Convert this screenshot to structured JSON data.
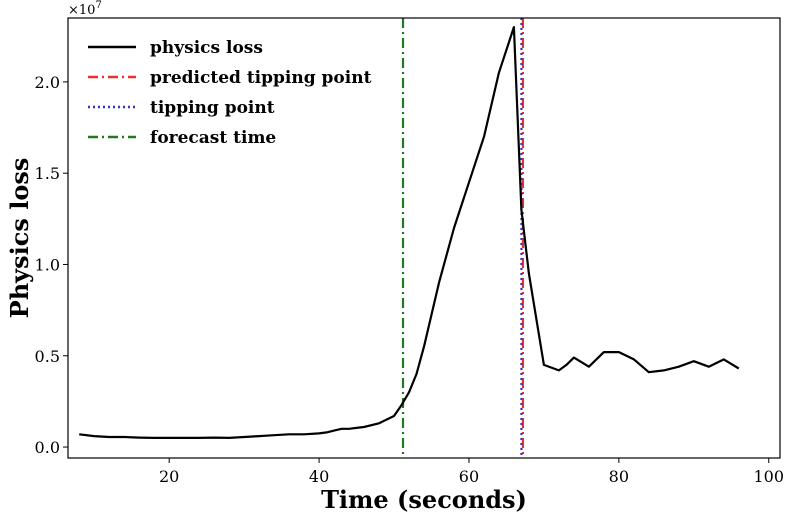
{
  "chart_data": {
    "type": "line",
    "xlabel": "Time (seconds)",
    "ylabel": "Physics loss",
    "y_offset_label": "×10",
    "y_offset_exponent": "7",
    "xlim": [
      6.5,
      101.5
    ],
    "ylim": [
      -0.6,
      23.5
    ],
    "y_units_multiplier": 10000000,
    "x_ticks": [
      20,
      40,
      60,
      80,
      100
    ],
    "x_tick_labels": [
      "20",
      "40",
      "60",
      "80",
      "100"
    ],
    "y_ticks": [
      0,
      5,
      10,
      15,
      20
    ],
    "y_tick_labels": [
      "0.0",
      "0.5",
      "1.0",
      "1.5",
      "2.0"
    ],
    "grid": false,
    "legend_position": "top-left",
    "series": [
      {
        "name": "physics loss",
        "color": "#000000",
        "style": "solid",
        "x": [
          8,
          10,
          12,
          14,
          16,
          18,
          20,
          22,
          24,
          26,
          28,
          30,
          32,
          34,
          36,
          38,
          40,
          41,
          42,
          43,
          44,
          45,
          46,
          48,
          50,
          51,
          52,
          53,
          54,
          56,
          58,
          60,
          62,
          64,
          66,
          67,
          68,
          70,
          72,
          73,
          74,
          76,
          78,
          80,
          82,
          84,
          86,
          88,
          90,
          92,
          94,
          96
        ],
        "y": [
          0.7,
          0.6,
          0.55,
          0.55,
          0.52,
          0.5,
          0.5,
          0.5,
          0.5,
          0.52,
          0.5,
          0.55,
          0.6,
          0.65,
          0.7,
          0.7,
          0.75,
          0.8,
          0.9,
          1.0,
          1.0,
          1.05,
          1.1,
          1.3,
          1.7,
          2.3,
          3.0,
          4.0,
          5.5,
          9.0,
          12.0,
          14.5,
          17.0,
          20.5,
          23.0,
          13.0,
          9.5,
          4.5,
          4.2,
          4.5,
          4.9,
          4.4,
          5.2,
          5.2,
          4.8,
          4.1,
          4.2,
          4.4,
          4.7,
          4.4,
          4.8,
          4.3
        ]
      }
    ],
    "vlines": [
      {
        "name": "predicted tipping point",
        "x": 67.2,
        "color": "#e8312a",
        "style": "dash-dot"
      },
      {
        "name": "tipping point",
        "x": 67.0,
        "color": "#3333cc",
        "style": "dotted"
      },
      {
        "name": "forecast time",
        "x": 51.2,
        "color": "#1f7a1f",
        "style": "dash-dot"
      }
    ],
    "legend": [
      {
        "label": "physics loss",
        "color": "#000000",
        "style": "solid"
      },
      {
        "label": "predicted tipping point",
        "color": "#e8312a",
        "style": "dash-dot"
      },
      {
        "label": "tipping point",
        "color": "#3333cc",
        "style": "dotted"
      },
      {
        "label": "forecast time",
        "color": "#1f7a1f",
        "style": "dash-dot"
      }
    ]
  }
}
